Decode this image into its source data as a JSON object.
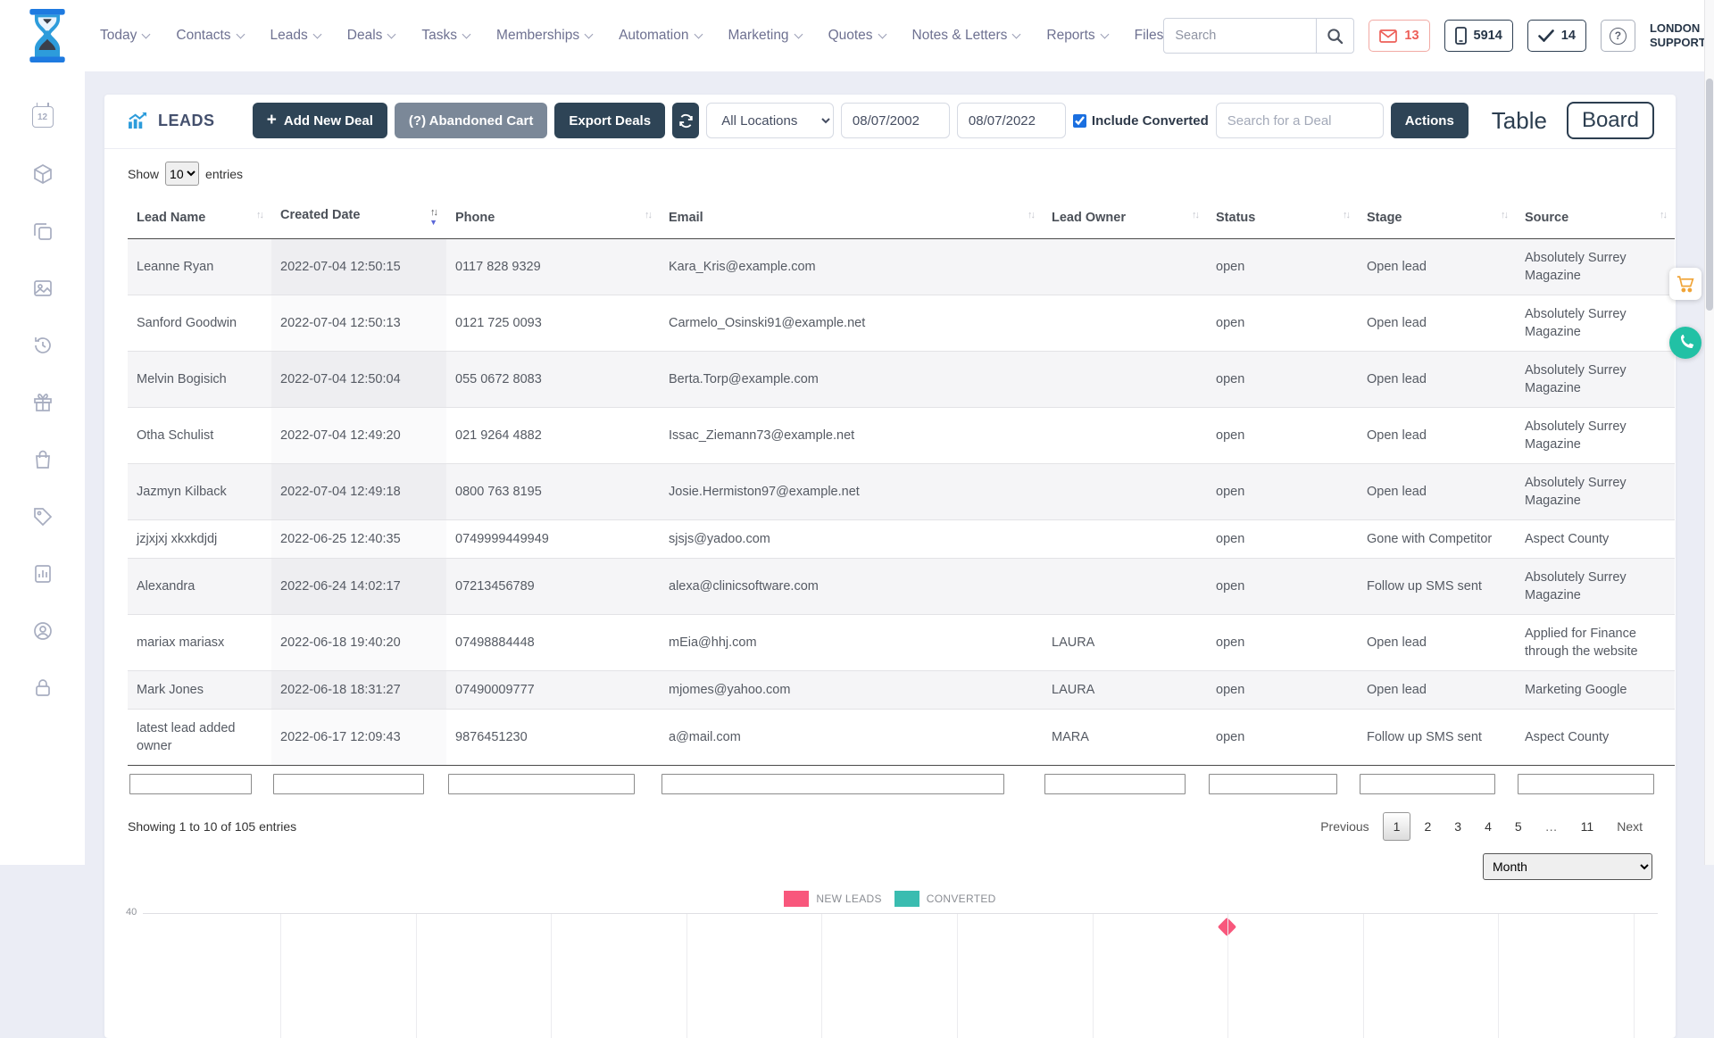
{
  "header": {
    "nav": [
      {
        "label": "Today",
        "has_dropdown": true
      },
      {
        "label": "Contacts",
        "has_dropdown": true
      },
      {
        "label": "Leads",
        "has_dropdown": true
      },
      {
        "label": "Deals",
        "has_dropdown": true
      },
      {
        "label": "Tasks",
        "has_dropdown": true
      },
      {
        "label": "Memberships",
        "has_dropdown": true
      },
      {
        "label": "Automation",
        "has_dropdown": true
      },
      {
        "label": "Marketing",
        "has_dropdown": true
      },
      {
        "label": "Quotes",
        "has_dropdown": true
      },
      {
        "label": "Notes & Letters",
        "has_dropdown": true
      },
      {
        "label": "Reports",
        "has_dropdown": true
      },
      {
        "label": "Files",
        "has_dropdown": false
      }
    ],
    "search_placeholder": "Search",
    "badges": {
      "mail_count": "13",
      "phone_count": "5914",
      "check_count": "14",
      "help": "?"
    },
    "user": {
      "line1": "LONDON",
      "line2": "SUPPORT"
    }
  },
  "sidebar": {
    "calendar_day": "12"
  },
  "toolbar": {
    "title": "LEADS",
    "add_new_deal": "Add New Deal",
    "abandoned_cart": "(?) Abandoned Cart",
    "export_deals": "Export Deals",
    "location_filter": "All Locations",
    "date_from": "08/07/2002",
    "date_to": "08/07/2022",
    "include_converted_label": "Include Converted",
    "deal_search_placeholder": "Search for a Deal",
    "actions": "Actions",
    "view_table": "Table",
    "view_board": "Board"
  },
  "table": {
    "show_label": "Show",
    "entries_label": "entries",
    "page_size": "10",
    "columns": [
      "Lead Name",
      "Created Date",
      "Phone",
      "Email",
      "Lead Owner",
      "Status",
      "Stage",
      "Source"
    ],
    "sorted_column": "Created Date",
    "sort_direction": "desc",
    "rows": [
      {
        "name": "Leanne Ryan",
        "created": "2022-07-04 12:50:15",
        "phone": "0117 828 9329",
        "email": "Kara_Kris@example.com",
        "owner": "",
        "status": "open",
        "stage": "Open lead",
        "source": "Absolutely Surrey Magazine"
      },
      {
        "name": "Sanford Goodwin",
        "created": "2022-07-04 12:50:13",
        "phone": "0121 725 0093",
        "email": "Carmelo_Osinski91@example.net",
        "owner": "",
        "status": "open",
        "stage": "Open lead",
        "source": "Absolutely Surrey Magazine"
      },
      {
        "name": "Melvin Bogisich",
        "created": "2022-07-04 12:50:04",
        "phone": "055 0672 8083",
        "email": "Berta.Torp@example.com",
        "owner": "",
        "status": "open",
        "stage": "Open lead",
        "source": "Absolutely Surrey Magazine"
      },
      {
        "name": "Otha Schulist",
        "created": "2022-07-04 12:49:20",
        "phone": "021 9264 4882",
        "email": "Issac_Ziemann73@example.net",
        "owner": "",
        "status": "open",
        "stage": "Open lead",
        "source": "Absolutely Surrey Magazine"
      },
      {
        "name": "Jazmyn Kilback",
        "created": "2022-07-04 12:49:18",
        "phone": "0800 763 8195",
        "email": "Josie.Hermiston97@example.net",
        "owner": "",
        "status": "open",
        "stage": "Open lead",
        "source": "Absolutely Surrey Magazine"
      },
      {
        "name": "jzjxjxj xkxkdjdj",
        "created": "2022-06-25 12:40:35",
        "phone": "0749999449949",
        "email": "sjsjs@yadoo.com",
        "owner": "",
        "status": "open",
        "stage": "Gone with Competitor",
        "source": "Aspect County"
      },
      {
        "name": "Alexandra",
        "created": "2022-06-24 14:02:17",
        "phone": "07213456789",
        "email": "alexa@clinicsoftware.com",
        "owner": "",
        "status": "open",
        "stage": "Follow up SMS sent",
        "source": "Absolutely Surrey Magazine"
      },
      {
        "name": "mariax mariasx",
        "created": "2022-06-18 19:40:20",
        "phone": "07498884448",
        "email": "mEia@hhj.com",
        "owner": "LAURA",
        "status": "open",
        "stage": "Open lead",
        "source": "Applied for Finance through the website"
      },
      {
        "name": "Mark Jones",
        "created": "2022-06-18 18:31:27",
        "phone": "07490009777",
        "email": "mjomes@yahoo.com",
        "owner": "LAURA",
        "status": "open",
        "stage": "Open lead",
        "source": "Marketing Google"
      },
      {
        "name": "latest lead added owner",
        "created": "2022-06-17 12:09:43",
        "phone": "9876451230",
        "email": "a@mail.com",
        "owner": "MARA",
        "status": "open",
        "stage": "Follow up SMS sent",
        "source": "Aspect County"
      }
    ],
    "summary": "Showing 1 to 10 of 105 entries",
    "pagination": {
      "previous": "Previous",
      "pages": [
        "1",
        "2",
        "3",
        "4",
        "5",
        "...",
        "11"
      ],
      "current": "1",
      "next": "Next"
    }
  },
  "chart": {
    "period_selector": "Month",
    "y_tick": "40"
  },
  "chart_data": {
    "type": "line",
    "title": "",
    "legend_position": "top-center",
    "series": [
      {
        "name": "NEW LEADS",
        "color": "#f8577c"
      },
      {
        "name": "CONVERTED",
        "color": "#3abcb0"
      }
    ],
    "y_axis": {
      "visible_tick": 40
    },
    "x_axis": {
      "interval": "Month",
      "gridline_count": 11
    },
    "note": "chart is cropped by the viewport bottom; one NEW LEADS peak marker is visible at the 8th gridline"
  }
}
